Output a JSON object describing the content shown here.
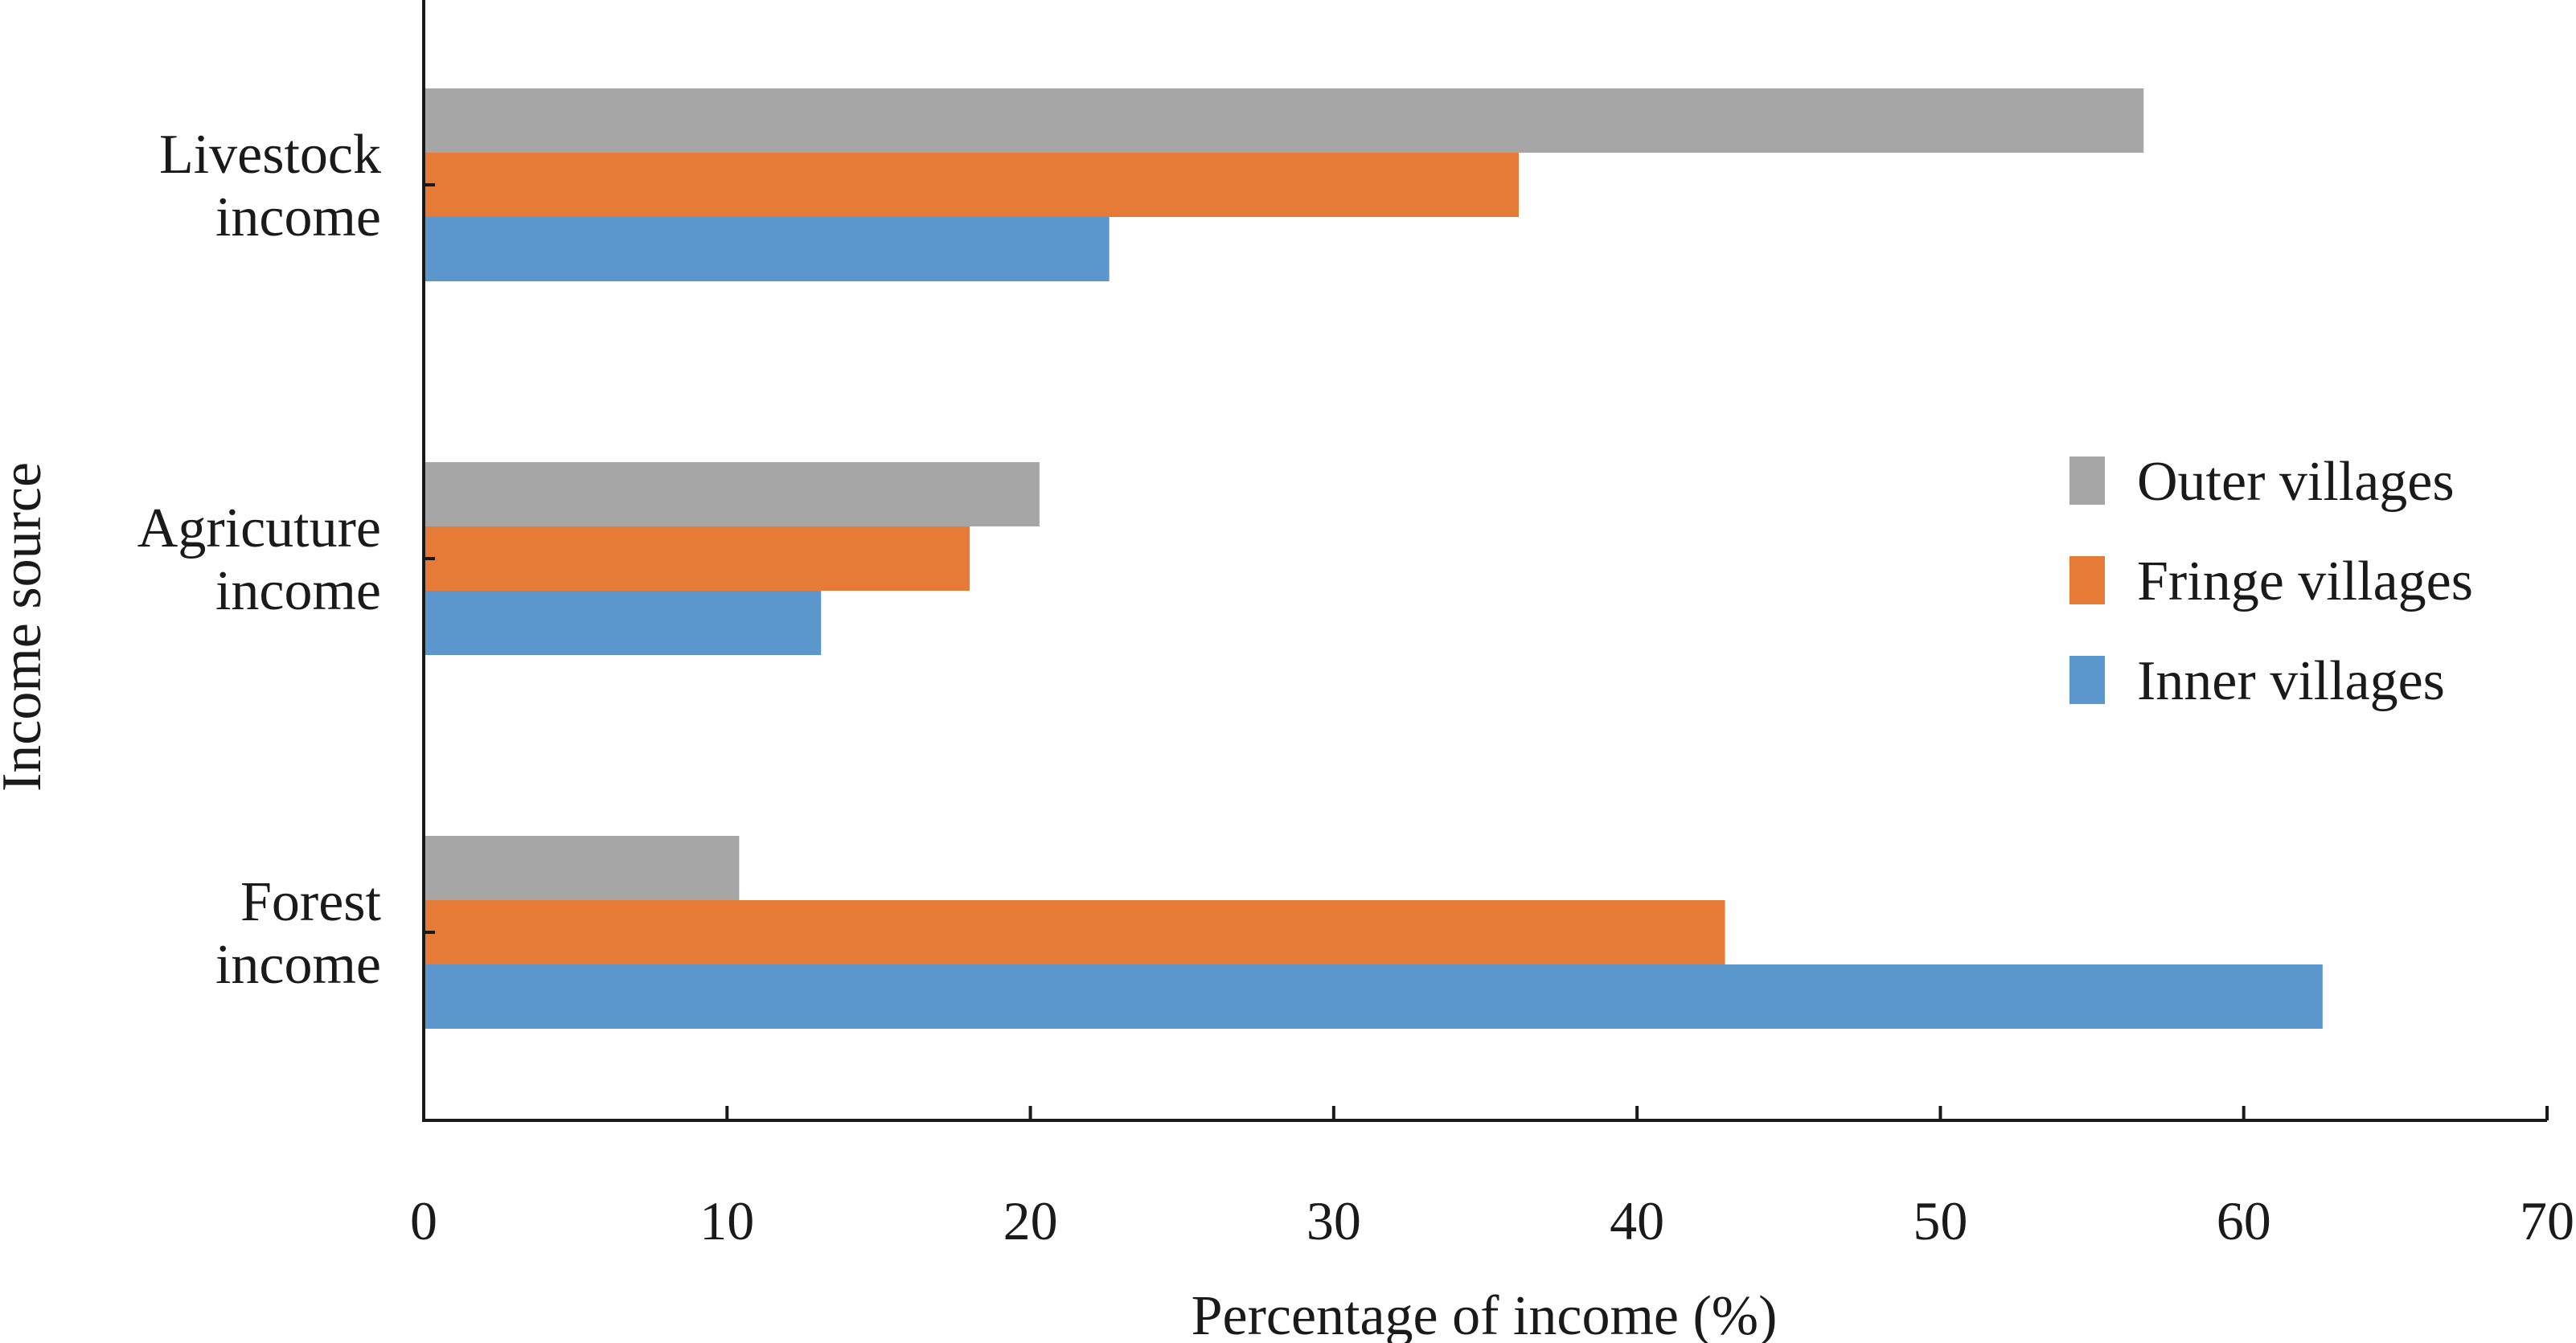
{
  "chart_data": {
    "type": "bar",
    "orientation": "horizontal",
    "title": "",
    "xlabel": "Percentage of income (%)",
    "ylabel": "Income source",
    "xlim": [
      0,
      70
    ],
    "xticks": [
      0,
      10,
      20,
      30,
      40,
      50,
      60,
      70
    ],
    "grid": false,
    "legend_position": "right",
    "categories": [
      [
        "Livestock",
        "income"
      ],
      [
        "Agricuture",
        "income"
      ],
      [
        "Forest",
        "income"
      ]
    ],
    "series": [
      {
        "name": "Outer villages",
        "color": "#a6a6a6",
        "values": [
          56.7,
          20.3,
          10.4
        ]
      },
      {
        "name": "Fringe villages",
        "color": "#e57b37",
        "values": [
          36.1,
          18.0,
          42.9
        ]
      },
      {
        "name": "Inner villages",
        "color": "#5b96cc",
        "values": [
          22.6,
          13.1,
          62.6
        ]
      }
    ]
  }
}
